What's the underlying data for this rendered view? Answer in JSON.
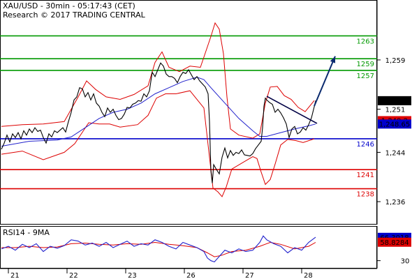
{
  "chart_data": {
    "type": "line",
    "header": {
      "title": "XAU/USD - 30min - 05:17:43 (CET)",
      "subtitle": "Research © 2017 TRADING CENTRAL"
    },
    "x_labels": [
      "21",
      "22",
      "23",
      "26",
      "27",
      "28"
    ],
    "y_ticks": [
      {
        "value": 1259,
        "label": "1,259"
      },
      {
        "value": 1251,
        "label": "1,251"
      },
      {
        "value": 1244,
        "label": "1,244"
      },
      {
        "value": 1236,
        "label": "1,236"
      }
    ],
    "ylim": [
      1232.5,
      1268.5
    ],
    "levels": [
      {
        "name": "1263",
        "value": 1262.9,
        "color": "#009900"
      },
      {
        "name": "1259",
        "value": 1259.2,
        "color": "#009900"
      },
      {
        "name": "1257",
        "value": 1257.3,
        "color": "#009900"
      },
      {
        "name": "1246",
        "value": 1246.2,
        "color": "#0000cc"
      },
      {
        "name": "1241",
        "value": 1241.2,
        "color": "#dd0000"
      },
      {
        "name": "1238",
        "value": 1238.1,
        "color": "#dd0000"
      }
    ],
    "price_badges": [
      {
        "label": "1,252.44",
        "value": 1252.44,
        "bg": "#000000",
        "fg": "#ffffff"
      },
      {
        "label": "1,249.2",
        "value": 1249.2,
        "bg": "#dd0000",
        "fg": "#ffffff"
      },
      {
        "label": "1,248.65",
        "value": 1248.65,
        "bg": "#0000cc",
        "fg": "#ffffff"
      }
    ],
    "price": [
      [
        0,
        1244.5
      ],
      [
        4,
        1245.5
      ],
      [
        8,
        1246.8
      ],
      [
        12,
        1245.7
      ],
      [
        16,
        1247
      ],
      [
        20,
        1246.4
      ],
      [
        24,
        1247.2
      ],
      [
        28,
        1246.2
      ],
      [
        32,
        1247.5
      ],
      [
        36,
        1246.8
      ],
      [
        40,
        1247.8
      ],
      [
        44,
        1247.2
      ],
      [
        48,
        1248
      ],
      [
        52,
        1247.4
      ],
      [
        56,
        1247.6
      ],
      [
        60,
        1246.4
      ],
      [
        64,
        1245.5
      ],
      [
        68,
        1247
      ],
      [
        72,
        1246.5
      ],
      [
        76,
        1247.5
      ],
      [
        80,
        1247.2
      ],
      [
        84,
        1247.6
      ],
      [
        88,
        1248
      ],
      [
        92,
        1247.3
      ],
      [
        96,
        1249
      ],
      [
        100,
        1250.5
      ],
      [
        104,
        1252.5
      ],
      [
        108,
        1253
      ],
      [
        112,
        1254.5
      ],
      [
        116,
        1254.3
      ],
      [
        120,
        1253
      ],
      [
        124,
        1253.7
      ],
      [
        128,
        1252.5
      ],
      [
        132,
        1253.5
      ],
      [
        136,
        1252
      ],
      [
        140,
        1251.5
      ],
      [
        144,
        1250.5
      ],
      [
        148,
        1249.8
      ],
      [
        152,
        1251.2
      ],
      [
        156,
        1250.5
      ],
      [
        160,
        1251
      ],
      [
        164,
        1250
      ],
      [
        168,
        1249.3
      ],
      [
        172,
        1249.5
      ],
      [
        176,
        1250.2
      ],
      [
        180,
        1251.3
      ],
      [
        184,
        1251.2
      ],
      [
        188,
        1251.8
      ],
      [
        192,
        1252
      ],
      [
        196,
        1252.4
      ],
      [
        200,
        1252.3
      ],
      [
        204,
        1253.5
      ],
      [
        208,
        1253
      ],
      [
        212,
        1254
      ],
      [
        216,
        1257
      ],
      [
        220,
        1256.3
      ],
      [
        224,
        1257.4
      ],
      [
        228,
        1258.5
      ],
      [
        232,
        1258
      ],
      [
        236,
        1256.7
      ],
      [
        240,
        1256.3
      ],
      [
        244,
        1256.3
      ],
      [
        248,
        1256
      ],
      [
        252,
        1255.3
      ],
      [
        256,
        1256.3
      ],
      [
        260,
        1257
      ],
      [
        264,
        1256.8
      ],
      [
        268,
        1257.4
      ],
      [
        272,
        1256.6
      ],
      [
        276,
        1255.8
      ],
      [
        280,
        1256.3
      ],
      [
        284,
        1255.6
      ],
      [
        288,
        1255.1
      ],
      [
        292,
        1254.6
      ],
      [
        296,
        1253.5
      ],
      [
        298,
        1249
      ],
      [
        300,
        1241
      ],
      [
        302,
        1239
      ],
      [
        304,
        1242
      ],
      [
        308,
        1241.2
      ],
      [
        312,
        1240.5
      ],
      [
        316,
        1243.2
      ],
      [
        320,
        1244.7
      ],
      [
        324,
        1243.1
      ],
      [
        328,
        1244.3
      ],
      [
        332,
        1243.5
      ],
      [
        336,
        1244
      ],
      [
        340,
        1243.8
      ],
      [
        344,
        1244.4
      ],
      [
        348,
        1243.6
      ],
      [
        352,
        1243.5
      ],
      [
        356,
        1243.4
      ],
      [
        360,
        1243.8
      ],
      [
        364,
        1244.6
      ],
      [
        368,
        1245.2
      ],
      [
        372,
        1245.8
      ],
      [
        374,
        1248
      ],
      [
        376,
        1251.5
      ],
      [
        378,
        1252.8
      ],
      [
        380,
        1252.5
      ],
      [
        384,
        1252.1
      ],
      [
        388,
        1251.8
      ],
      [
        392,
        1250.5
      ],
      [
        396,
        1251
      ],
      [
        400,
        1250.4
      ],
      [
        404,
        1249.6
      ],
      [
        408,
        1248.6
      ],
      [
        412,
        1246.4
      ],
      [
        416,
        1247.8
      ],
      [
        420,
        1248.2
      ],
      [
        424,
        1247
      ],
      [
        428,
        1247.3
      ],
      [
        432,
        1248
      ],
      [
        436,
        1247.6
      ],
      [
        440,
        1248.5
      ],
      [
        444,
        1249.6
      ],
      [
        448,
        1251.4
      ],
      [
        450,
        1252.4
      ]
    ],
    "ma": [
      [
        0,
        1245
      ],
      [
        40,
        1245.8
      ],
      [
        80,
        1246
      ],
      [
        100,
        1246.5
      ],
      [
        120,
        1248
      ],
      [
        140,
        1249.5
      ],
      [
        160,
        1250.5
      ],
      [
        180,
        1251
      ],
      [
        200,
        1252
      ],
      [
        220,
        1253.5
      ],
      [
        240,
        1254.5
      ],
      [
        260,
        1255.5
      ],
      [
        280,
        1256.2
      ],
      [
        290,
        1255.8
      ],
      [
        300,
        1254.5
      ],
      [
        320,
        1252
      ],
      [
        340,
        1249.5
      ],
      [
        360,
        1247.5
      ],
      [
        370,
        1246.6
      ],
      [
        380,
        1246.6
      ],
      [
        400,
        1247.2
      ],
      [
        420,
        1247.8
      ],
      [
        440,
        1248.3
      ],
      [
        450,
        1248.6
      ]
    ],
    "bb_upper": [
      [
        0,
        1248.2
      ],
      [
        30,
        1248.5
      ],
      [
        60,
        1248.6
      ],
      [
        90,
        1249
      ],
      [
        110,
        1253
      ],
      [
        122,
        1255.6
      ],
      [
        135,
        1254.2
      ],
      [
        150,
        1253
      ],
      [
        170,
        1252.6
      ],
      [
        190,
        1253.4
      ],
      [
        210,
        1254.8
      ],
      [
        220,
        1258.6
      ],
      [
        230,
        1260.3
      ],
      [
        240,
        1257.8
      ],
      [
        255,
        1257.1
      ],
      [
        270,
        1258
      ],
      [
        285,
        1257.8
      ],
      [
        300,
        1262.8
      ],
      [
        306,
        1265
      ],
      [
        312,
        1264
      ],
      [
        318,
        1260
      ],
      [
        323,
        1253
      ],
      [
        328,
        1247.8
      ],
      [
        340,
        1246.8
      ],
      [
        360,
        1246.3
      ],
      [
        370,
        1247
      ],
      [
        378,
        1252
      ],
      [
        385,
        1254.6
      ],
      [
        395,
        1254.7
      ],
      [
        405,
        1253.2
      ],
      [
        415,
        1252.6
      ],
      [
        425,
        1251.3
      ],
      [
        435,
        1250.6
      ],
      [
        448,
        1252.4
      ]
    ],
    "bb_lower": [
      [
        0,
        1243.7
      ],
      [
        30,
        1244.2
      ],
      [
        60,
        1242.8
      ],
      [
        90,
        1244
      ],
      [
        105,
        1245.4
      ],
      [
        125,
        1248.8
      ],
      [
        140,
        1248.6
      ],
      [
        155,
        1248.6
      ],
      [
        170,
        1248.1
      ],
      [
        195,
        1248.5
      ],
      [
        210,
        1250
      ],
      [
        222,
        1252.8
      ],
      [
        235,
        1253.5
      ],
      [
        250,
        1253.5
      ],
      [
        270,
        1254
      ],
      [
        290,
        1251.2
      ],
      [
        298,
        1243.2
      ],
      [
        303,
        1238.2
      ],
      [
        310,
        1237.6
      ],
      [
        316,
        1236.8
      ],
      [
        322,
        1238.4
      ],
      [
        330,
        1241.3
      ],
      [
        345,
        1242.3
      ],
      [
        360,
        1243.3
      ],
      [
        366,
        1243
      ],
      [
        372,
        1240.8
      ],
      [
        378,
        1238.8
      ],
      [
        385,
        1239.6
      ],
      [
        392,
        1242.1
      ],
      [
        400,
        1245.2
      ],
      [
        410,
        1246.1
      ],
      [
        422,
        1245.9
      ],
      [
        432,
        1245.6
      ],
      [
        448,
        1246.2
      ]
    ],
    "trendline": [
      [
        380,
        1253.1
      ],
      [
        452,
        1248.7
      ]
    ],
    "arrow": [
      [
        448,
        1251.5
      ],
      [
        478,
        1259.6
      ]
    ],
    "rsi": {
      "label": "RSI14 - 9MA",
      "ylim": [
        20,
        80
      ],
      "ticks": [
        {
          "value": 30,
          "label": "30"
        }
      ],
      "badges": [
        {
          "label": "66.3018",
          "value": 66.3018,
          "bg": "#0000cc",
          "fg": "#ffffff"
        },
        {
          "label": "58.8284",
          "value": 58.8284,
          "bg": "#dd0000",
          "fg": "#ffffff"
        }
      ],
      "rsi": [
        [
          0,
          48
        ],
        [
          10,
          52
        ],
        [
          20,
          46
        ],
        [
          30,
          55
        ],
        [
          40,
          50
        ],
        [
          50,
          56
        ],
        [
          60,
          44
        ],
        [
          70,
          52
        ],
        [
          80,
          49
        ],
        [
          90,
          53
        ],
        [
          100,
          62
        ],
        [
          110,
          60
        ],
        [
          120,
          54
        ],
        [
          130,
          57
        ],
        [
          140,
          52
        ],
        [
          150,
          58
        ],
        [
          160,
          50
        ],
        [
          170,
          55
        ],
        [
          180,
          60
        ],
        [
          190,
          52
        ],
        [
          200,
          56
        ],
        [
          210,
          54
        ],
        [
          220,
          62
        ],
        [
          230,
          58
        ],
        [
          240,
          52
        ],
        [
          250,
          48
        ],
        [
          260,
          58
        ],
        [
          270,
          54
        ],
        [
          280,
          50
        ],
        [
          290,
          44
        ],
        [
          295,
          34
        ],
        [
          300,
          30
        ],
        [
          305,
          28
        ],
        [
          310,
          34
        ],
        [
          320,
          46
        ],
        [
          330,
          42
        ],
        [
          340,
          48
        ],
        [
          350,
          44
        ],
        [
          360,
          46
        ],
        [
          370,
          58
        ],
        [
          375,
          68
        ],
        [
          380,
          62
        ],
        [
          390,
          56
        ],
        [
          400,
          52
        ],
        [
          410,
          42
        ],
        [
          420,
          50
        ],
        [
          430,
          46
        ],
        [
          440,
          58
        ],
        [
          450,
          66
        ]
      ],
      "ma": [
        [
          0,
          50
        ],
        [
          20,
          50
        ],
        [
          40,
          52
        ],
        [
          60,
          50
        ],
        [
          80,
          51
        ],
        [
          100,
          56
        ],
        [
          120,
          57
        ],
        [
          140,
          55
        ],
        [
          160,
          54
        ],
        [
          180,
          56
        ],
        [
          200,
          55
        ],
        [
          220,
          58
        ],
        [
          240,
          55
        ],
        [
          260,
          53
        ],
        [
          280,
          50
        ],
        [
          295,
          42
        ],
        [
          305,
          36
        ],
        [
          315,
          38
        ],
        [
          330,
          44
        ],
        [
          350,
          46
        ],
        [
          370,
          52
        ],
        [
          385,
          58
        ],
        [
          400,
          55
        ],
        [
          420,
          48
        ],
        [
          440,
          52
        ],
        [
          450,
          58
        ]
      ]
    },
    "colors": {
      "price": "#000000",
      "ma": "#2222cc",
      "bands": "#dd0000",
      "trendline": "#000044",
      "arrow": "#0a2a6e",
      "rsi": "#2222cc",
      "rsi_ma": "#dd0000"
    }
  }
}
